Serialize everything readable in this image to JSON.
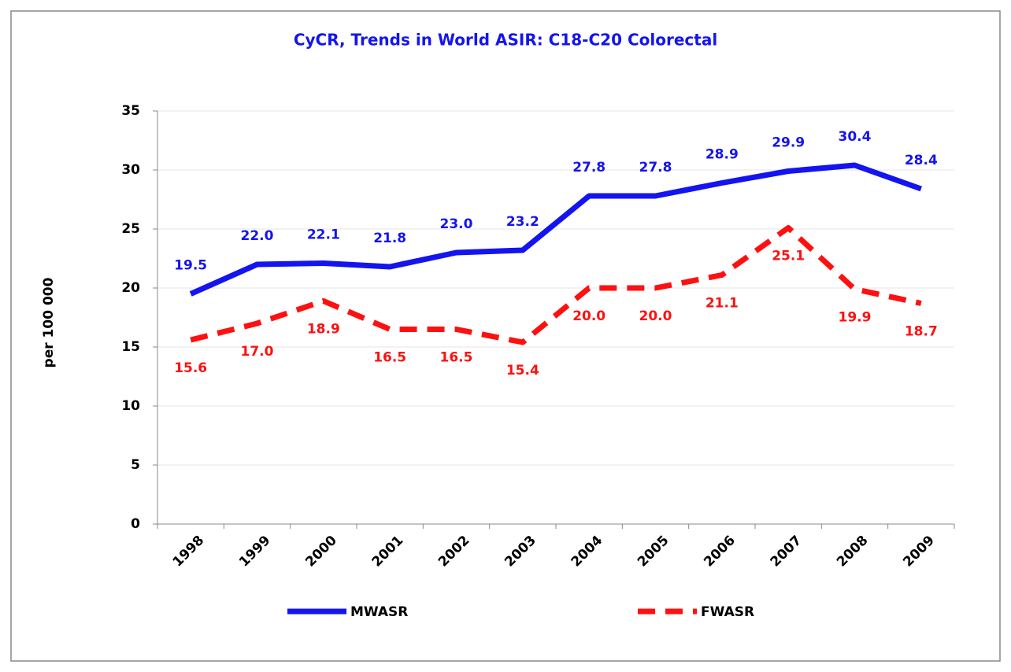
{
  "chart_data": {
    "type": "line",
    "title": "CyCR,  Trends in World ASIR:  C18-C20  Colorectal",
    "y_label": "per 100 000",
    "categories": [
      "1998",
      "1999",
      "2000",
      "2001",
      "2002",
      "2003",
      "2004",
      "2005",
      "2006",
      "2007",
      "2008",
      "2009"
    ],
    "series": [
      {
        "name": "MWASR",
        "color": "#1414f0",
        "dashed": false,
        "label_position": "above",
        "values": [
          19.5,
          22.0,
          22.1,
          21.8,
          23.0,
          23.2,
          27.8,
          27.8,
          28.9,
          29.9,
          30.4,
          28.4
        ],
        "value_labels": [
          "19.5",
          "22.0",
          "22.1",
          "21.8",
          "23.0",
          "23.2",
          "27.8",
          "27.8",
          "28.9",
          "29.9",
          "30.4",
          "28.4"
        ]
      },
      {
        "name": "FWASR",
        "color": "#ff1010",
        "dashed": true,
        "label_position": "below",
        "values": [
          15.6,
          17.0,
          18.9,
          16.5,
          16.5,
          15.4,
          20.0,
          20.0,
          21.1,
          25.1,
          19.9,
          18.7
        ],
        "value_labels": [
          "15.6",
          "17.0",
          "18.9",
          "16.5",
          "16.5",
          "15.4",
          "20.0",
          "20.0",
          "21.1",
          "25.1",
          "19.9",
          "18.7"
        ]
      }
    ],
    "ylim": [
      0,
      35
    ],
    "yticks": [
      0,
      5,
      10,
      15,
      20,
      25,
      30,
      35
    ],
    "grid": true,
    "legend": "bottom"
  }
}
